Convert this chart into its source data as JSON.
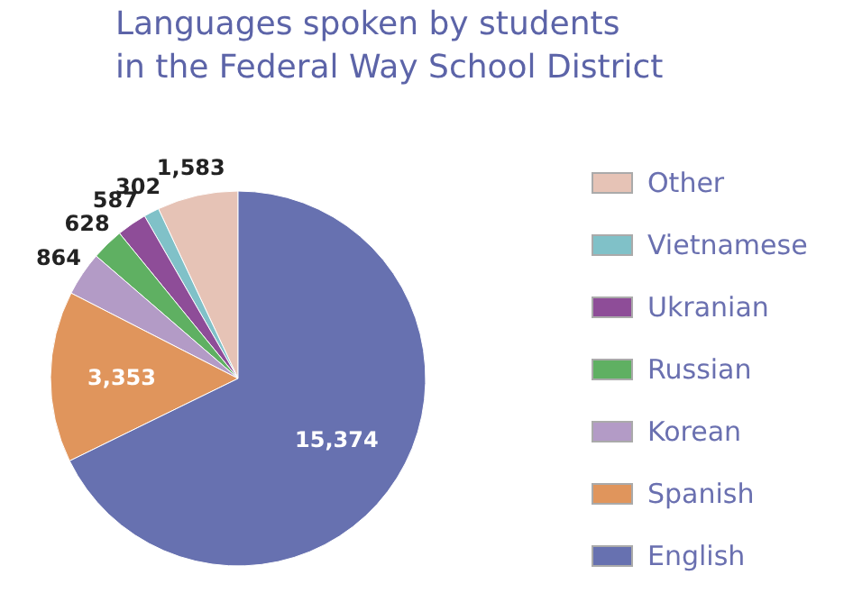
{
  "chart_data": {
    "type": "pie",
    "title": "Languages spoken by students in the Federal Way School District",
    "categories": [
      "Other",
      "Vietnamese",
      "Ukranian",
      "Russian",
      "Korean",
      "Spanish",
      "English"
    ],
    "values": [
      1583,
      302,
      587,
      628,
      864,
      3353,
      15374
    ],
    "colors": [
      "#e6c3b6",
      "#80c1c8",
      "#8e4d98",
      "#5fb062",
      "#b39bc6",
      "#e0955c",
      "#6771b0"
    ],
    "value_labels": [
      "1,583",
      "302",
      "587",
      "628",
      "864",
      "3,353",
      "15,374"
    ],
    "legend": "right"
  }
}
